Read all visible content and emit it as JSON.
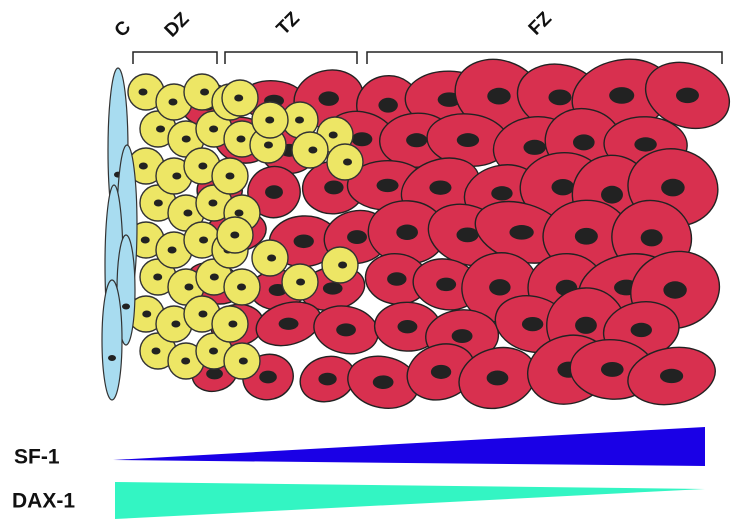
{
  "zones": {
    "capsule": "C",
    "definitive": "DZ",
    "transitional": "TZ",
    "fetal": "FZ"
  },
  "gradients": {
    "sf1": "SF-1",
    "dax1": "DAX-1"
  }
}
